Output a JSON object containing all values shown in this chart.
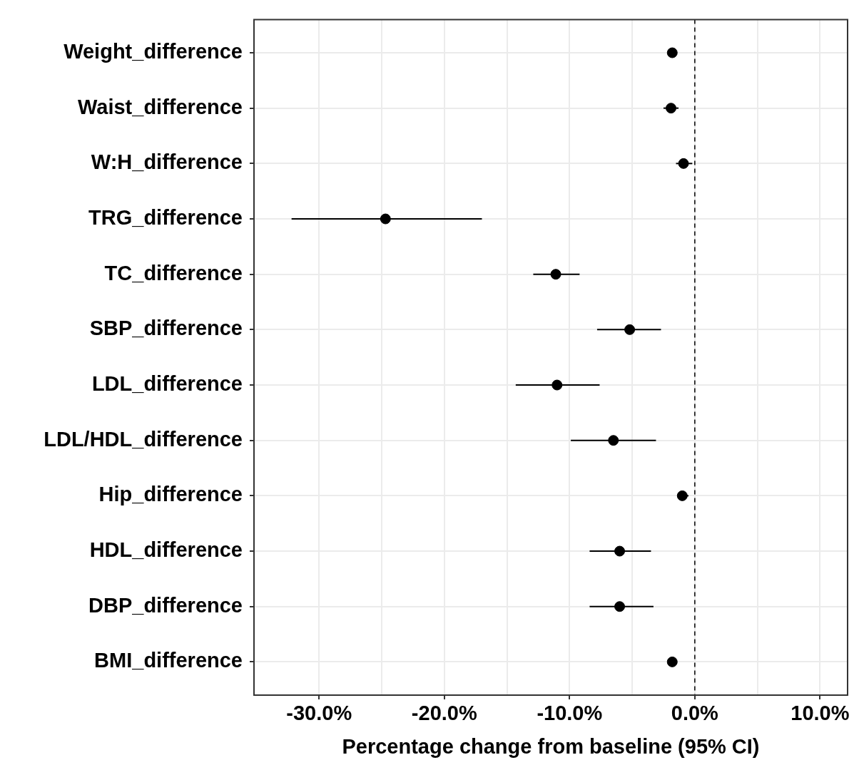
{
  "chart_data": {
    "type": "scatter",
    "orientation": "horizontal",
    "xlabel": "Percentage change from baseline (95% CI)",
    "categories": [
      "Weight_difference",
      "Waist_difference",
      "W:H_difference",
      "TRG_difference",
      "TC_difference",
      "SBP_difference",
      "LDL_difference",
      "LDL/HDL_difference",
      "Hip_difference",
      "HDL_difference",
      "DBP_difference",
      "BMI_difference"
    ],
    "values": [
      -1.8,
      -1.9,
      -0.9,
      -24.7,
      -11.1,
      -5.2,
      -11.0,
      -6.5,
      -1.0,
      -6.0,
      -6.0,
      -1.8
    ],
    "errors": [
      null,
      [
        -2.5,
        -1.3
      ],
      [
        -1.5,
        -0.2
      ],
      [
        -32.2,
        -17.0
      ],
      [
        -12.9,
        -9.2
      ],
      [
        -7.8,
        -2.7
      ],
      [
        -14.3,
        -7.6
      ],
      [
        -9.9,
        -3.1
      ],
      [
        -1.4,
        -0.5
      ],
      [
        -8.4,
        -3.5
      ],
      [
        -8.4,
        -3.3
      ],
      null
    ],
    "color": "#000000",
    "marker": "circle",
    "grid": true,
    "xlim": [
      -35.2,
      12.2
    ],
    "xticks": [
      {
        "value": -30,
        "label": "-30.0%"
      },
      {
        "value": -25,
        "label": null
      },
      {
        "value": -20,
        "label": "-20.0%"
      },
      {
        "value": -15,
        "label": null
      },
      {
        "value": -10,
        "label": "-10.0%"
      },
      {
        "value": -5,
        "label": null
      },
      {
        "value": 0,
        "label": "0.0%"
      },
      {
        "value": 5,
        "label": null
      },
      {
        "value": 10,
        "label": "10.0%"
      }
    ],
    "ref_lines": [
      {
        "axis": "x",
        "value": 0,
        "color": "#000000",
        "line_style": "dashed"
      }
    ]
  }
}
